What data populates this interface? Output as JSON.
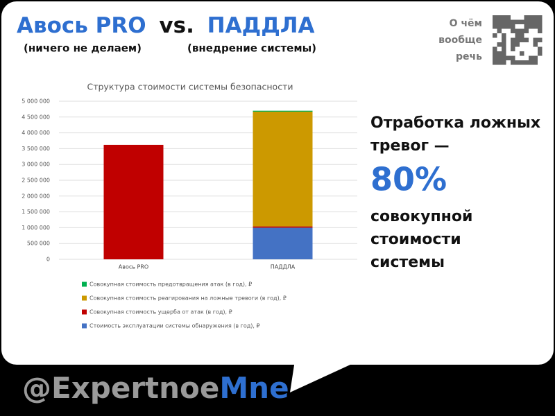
{
  "header": {
    "title_left": "Авось PRO",
    "title_mid": "vs.",
    "title_right": "ПАДДЛА",
    "subtitle_left": "(ничего не делаем)",
    "subtitle_right": "(внедрение системы)",
    "qr_caption": [
      "О чём",
      "вообще",
      "речь"
    ]
  },
  "callout": {
    "lines_top": [
      "Отработка ложных",
      "тревог —"
    ],
    "big": "80%",
    "lines_bottom": [
      "совокупной",
      "стоимости",
      "системы"
    ]
  },
  "footer": {
    "handle_left": "@Expertnoe",
    "handle_right": "Mne"
  },
  "chart_data": {
    "type": "stacked_bar",
    "title": "Структура стоимости системы безопасности",
    "categories": [
      "Авось PRO",
      "ПАДДЛА"
    ],
    "series": [
      {
        "name": "Стоимость эксплуатации системы обнаружения (в год), ₽",
        "color": "#4472c4",
        "values": [
          0,
          1000000
        ]
      },
      {
        "name": "Совокупная стоимость ущерба от атак (в год), ₽",
        "color": "#c00000",
        "values": [
          3620000,
          40000
        ]
      },
      {
        "name": "Совокупная стоимость реагирования на ложные тревоги (в год), ₽",
        "color": "#cc9900",
        "values": [
          0,
          3630000
        ]
      },
      {
        "name": "Совокупная стоимость предотвращения атак (в год), ₽",
        "color": "#00b050",
        "values": [
          0,
          30000
        ]
      }
    ],
    "ylim": [
      0,
      5000000
    ],
    "yticks": [
      0,
      {
        "value": 500000,
        "label": "500 000"
      },
      {
        "value": 1000000,
        "label": "1 000 000"
      },
      {
        "value": 1500000,
        "label": "1 500 000"
      },
      {
        "value": 2000000,
        "label": "2 000 000"
      },
      {
        "value": 2500000,
        "label": "2 500 000"
      },
      {
        "value": 3000000,
        "label": "3 000 000"
      },
      {
        "value": 3500000,
        "label": "3 500 000"
      },
      {
        "value": 4000000,
        "label": "4 000 000"
      },
      {
        "value": 4500000,
        "label": "4 500 000"
      },
      {
        "value": 5000000,
        "label": "5 000 000"
      }
    ],
    "grid": true,
    "legend": "bottom"
  }
}
